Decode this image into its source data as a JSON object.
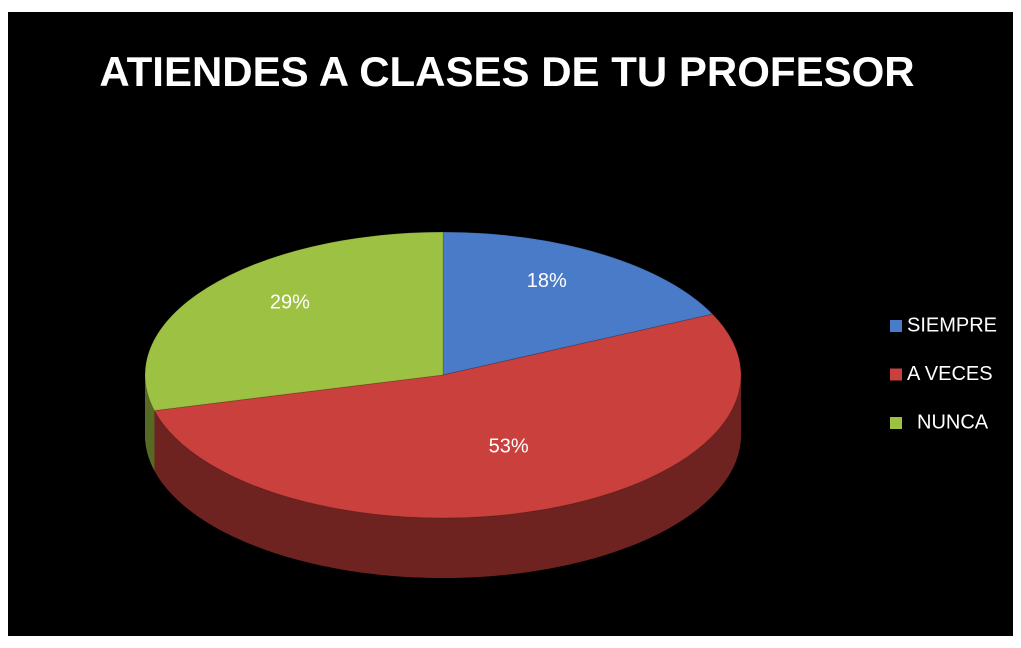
{
  "chart_data": {
    "type": "pie",
    "title": "ATIENDES A CLASES DE TU PROFESOR",
    "categories": [
      "SIEMPRE",
      "A VECES",
      "NUNCA"
    ],
    "values": [
      18,
      53,
      29
    ],
    "value_labels": [
      "18%",
      "53%",
      "29%"
    ],
    "colors": [
      "#4a7bc8",
      "#c9403d",
      "#9dc143"
    ],
    "legend": "right"
  }
}
